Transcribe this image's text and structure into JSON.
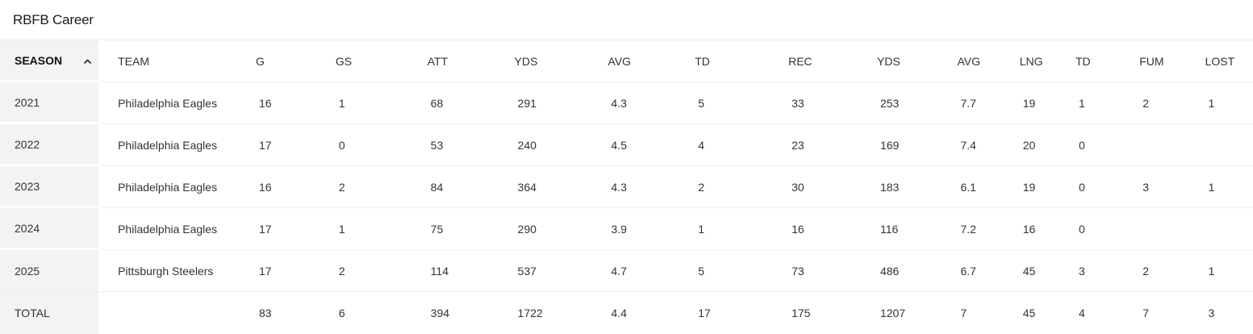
{
  "title": "RBFB Career",
  "columns": [
    "SEASON",
    "TEAM",
    "G",
    "GS",
    "ATT",
    "YDS",
    "AVG",
    "TD",
    "REC",
    "YDS",
    "AVG",
    "LNG",
    "TD",
    "FUM",
    "LOST"
  ],
  "sort": {
    "column": "SEASON",
    "direction": "ascending",
    "icon": "chevron-up-icon"
  },
  "rows": [
    [
      "2021",
      "Philadelphia Eagles",
      "16",
      "1",
      "68",
      "291",
      "4.3",
      "5",
      "33",
      "253",
      "7.7",
      "19",
      "1",
      "2",
      "1"
    ],
    [
      "2022",
      "Philadelphia Eagles",
      "17",
      "0",
      "53",
      "240",
      "4.5",
      "4",
      "23",
      "169",
      "7.4",
      "20",
      "0",
      "",
      ""
    ],
    [
      "2023",
      "Philadelphia Eagles",
      "16",
      "2",
      "84",
      "364",
      "4.3",
      "2",
      "30",
      "183",
      "6.1",
      "19",
      "0",
      "3",
      "1"
    ],
    [
      "2024",
      "Philadelphia Eagles",
      "17",
      "1",
      "75",
      "290",
      "3.9",
      "1",
      "16",
      "116",
      "7.2",
      "16",
      "0",
      "",
      ""
    ],
    [
      "2025",
      "Pittsburgh Steelers",
      "17",
      "2",
      "114",
      "537",
      "4.7",
      "5",
      "73",
      "486",
      "6.7",
      "45",
      "3",
      "2",
      "1"
    ]
  ],
  "total": [
    "TOTAL",
    "",
    "83",
    "6",
    "394",
    "1722",
    "4.4",
    "17",
    "175",
    "1207",
    "7",
    "45",
    "4",
    "7",
    "3"
  ]
}
